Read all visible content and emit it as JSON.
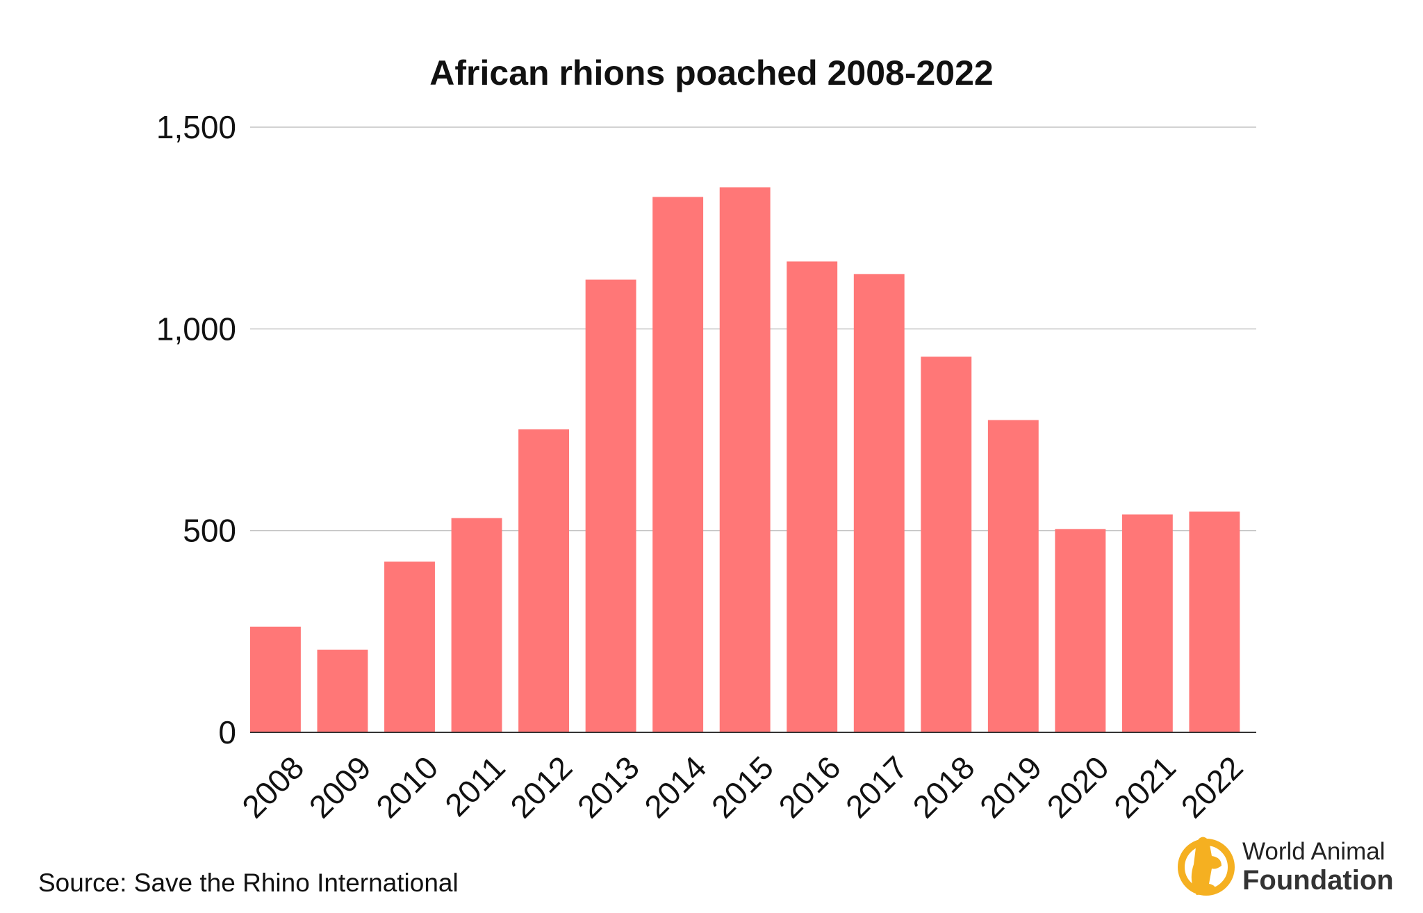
{
  "chart_data": {
    "type": "bar",
    "title": "African rhions poached 2008-2022",
    "xlabel": "",
    "ylabel": "",
    "categories": [
      "2008",
      "2009",
      "2010",
      "2011",
      "2012",
      "2013",
      "2014",
      "2015",
      "2016",
      "2017",
      "2018",
      "2019",
      "2020",
      "2021",
      "2022"
    ],
    "values": [
      262,
      205,
      423,
      531,
      751,
      1122,
      1327,
      1351,
      1167,
      1136,
      931,
      774,
      504,
      540,
      547
    ],
    "ylim": [
      0,
      1500
    ],
    "yticks": [
      0,
      500,
      1000,
      1500
    ],
    "ytick_labels": [
      "0",
      "500",
      "1,000",
      "1,500"
    ],
    "grid": true,
    "bar_color": "#ff7777"
  },
  "source": "Source: Save the Rhino International",
  "logo": {
    "line1": "World Animal",
    "line2": "Foundation",
    "color": "#f5b021"
  }
}
